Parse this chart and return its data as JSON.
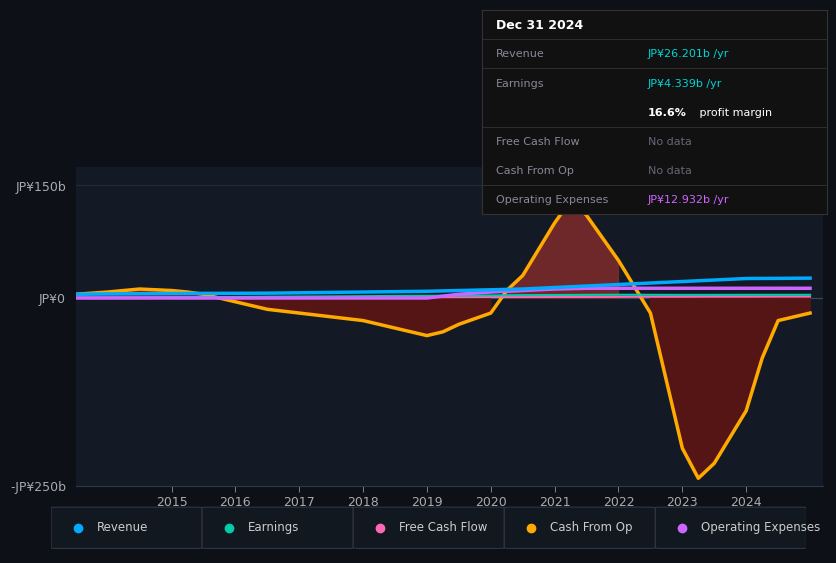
{
  "bg_color": "#0d1117",
  "plot_bg_color": "#131a25",
  "grid_color": "#1e2d3d",
  "ylim": [
    -250,
    175
  ],
  "yticks": [
    -250,
    0,
    150
  ],
  "ytick_labels": [
    "-JP¥250b",
    "JP¥0",
    "JP¥150b"
  ],
  "xlim_start": 2013.5,
  "xlim_end": 2025.2,
  "xticks": [
    2015,
    2016,
    2017,
    2018,
    2019,
    2020,
    2021,
    2022,
    2023,
    2024
  ],
  "legend_items": [
    {
      "label": "Revenue",
      "color": "#00aaff"
    },
    {
      "label": "Earnings",
      "color": "#00ccaa"
    },
    {
      "label": "Free Cash Flow",
      "color": "#ff69b4"
    },
    {
      "label": "Cash From Op",
      "color": "#ffaa00"
    },
    {
      "label": "Operating Expenses",
      "color": "#cc66ff"
    }
  ],
  "revenue": {
    "x": [
      2013.5,
      2014,
      2014.5,
      2015,
      2015.5,
      2016,
      2016.5,
      2017,
      2017.5,
      2018,
      2018.5,
      2019,
      2019.5,
      2020,
      2020.5,
      2021,
      2021.5,
      2022,
      2022.5,
      2023,
      2023.5,
      2024,
      2024.5,
      2025.0
    ],
    "y": [
      5,
      5.5,
      5.8,
      6,
      6.2,
      6.3,
      6.5,
      7,
      7.5,
      8,
      8.5,
      9,
      10,
      11,
      12,
      14,
      16,
      18,
      20,
      22,
      24,
      26,
      26.2,
      26.5
    ],
    "color": "#00aaff",
    "lw": 2.5
  },
  "earnings": {
    "x": [
      2013.5,
      2014,
      2014.5,
      2015,
      2015.5,
      2016,
      2016.5,
      2017,
      2017.5,
      2018,
      2018.5,
      2019,
      2019.5,
      2020,
      2020.5,
      2021,
      2021.5,
      2022,
      2022.5,
      2023,
      2023.5,
      2024,
      2024.5,
      2025.0
    ],
    "y": [
      0.5,
      0.6,
      0.8,
      1.0,
      1.2,
      1.5,
      1.8,
      2.0,
      2.2,
      2.5,
      2.8,
      3.0,
      3.2,
      3.5,
      3.8,
      4.0,
      4.2,
      4.4,
      4.3,
      4.2,
      4.2,
      4.3,
      4.3,
      4.3
    ],
    "color": "#00ccaa",
    "lw": 1.5
  },
  "free_cash_flow": {
    "x": [
      2013.5,
      2014,
      2014.5,
      2015,
      2015.5,
      2016,
      2016.5,
      2017,
      2017.5,
      2018,
      2018.5,
      2019,
      2019.5,
      2020,
      2020.5,
      2021,
      2021.5,
      2022,
      2022.5,
      2023,
      2023.5,
      2024,
      2024.5,
      2025.0
    ],
    "y": [
      0.2,
      0.3,
      0.4,
      0.5,
      0.6,
      0.7,
      0.8,
      0.8,
      0.9,
      1.0,
      1.0,
      1.1,
      1.2,
      1.3,
      1.4,
      1.5,
      1.5,
      1.6,
      1.7,
      1.7,
      1.8,
      1.8,
      1.9,
      1.9
    ],
    "color": "#ff69b4",
    "lw": 1.5
  },
  "cash_from_op": {
    "x": [
      2013.5,
      2014,
      2014.25,
      2014.5,
      2015,
      2015.25,
      2015.5,
      2016,
      2016.5,
      2017,
      2017.5,
      2018,
      2018.25,
      2018.5,
      2019,
      2019.25,
      2019.5,
      2020,
      2020.25,
      2020.5,
      2021,
      2021.25,
      2021.5,
      2022,
      2022.5,
      2023,
      2023.25,
      2023.5,
      2024,
      2024.25,
      2024.5,
      2025.0
    ],
    "y": [
      5,
      8,
      10,
      12,
      10,
      8,
      5,
      -5,
      -15,
      -20,
      -25,
      -30,
      -35,
      -40,
      -50,
      -45,
      -35,
      -20,
      10,
      30,
      100,
      130,
      110,
      50,
      -20,
      -200,
      -240,
      -220,
      -150,
      -80,
      -30,
      -20
    ],
    "color": "#ffaa00",
    "lw": 2.5
  },
  "operating_expenses": {
    "x": [
      2013.5,
      2014,
      2014.5,
      2015,
      2015.5,
      2016,
      2016.5,
      2017,
      2017.5,
      2018,
      2018.5,
      2019,
      2019.5,
      2020,
      2020.5,
      2021,
      2021.5,
      2022,
      2022.5,
      2023,
      2023.5,
      2024,
      2024.5,
      2025.0
    ],
    "y": [
      0,
      0,
      0,
      0,
      0,
      0,
      0,
      0,
      0,
      0,
      0,
      0,
      5,
      8,
      10,
      12,
      13,
      13,
      13,
      13,
      13,
      13,
      13,
      13
    ],
    "color": "#cc66ff",
    "lw": 2.5
  },
  "info_box_title": "Dec 31 2024",
  "info_rows": [
    {
      "label": "Revenue",
      "value": "JP¥26.201b /yr",
      "value_color": "#00d4d4",
      "nodata": false
    },
    {
      "label": "Earnings",
      "value": "JP¥4.339b /yr",
      "value_color": "#00d4d4",
      "nodata": false
    },
    {
      "label": "",
      "value": "16.6% profit margin",
      "value_color": "#ffffff",
      "nodata": false,
      "bold_prefix": "16.6%"
    },
    {
      "label": "Free Cash Flow",
      "value": "No data",
      "value_color": "#666677",
      "nodata": true
    },
    {
      "label": "Cash From Op",
      "value": "No data",
      "value_color": "#666677",
      "nodata": true
    },
    {
      "label": "Operating Expenses",
      "value": "JP¥12.932b /yr",
      "value_color": "#cc66ff",
      "nodata": false
    }
  ]
}
